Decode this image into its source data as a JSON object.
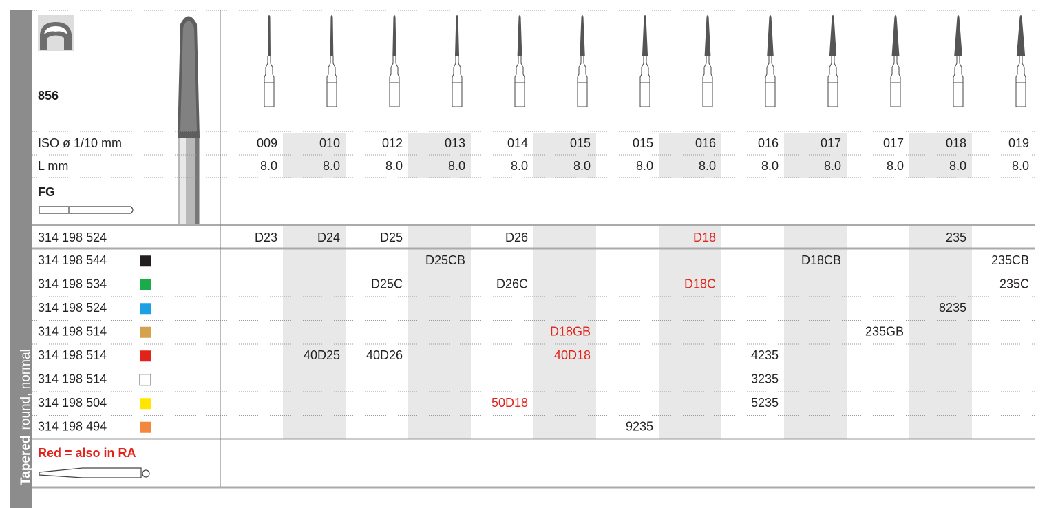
{
  "side_label": {
    "bold": "Tapered",
    "normal": "round, normal"
  },
  "model": "856",
  "iso_label": "ISO ø 1/10 mm",
  "iso": [
    "009",
    "010",
    "012",
    "013",
    "014",
    "015",
    "015",
    "016",
    "016",
    "017",
    "017",
    "018",
    "019"
  ],
  "length_label": "L mm",
  "length": [
    "8.0",
    "8.0",
    "8.0",
    "8.0",
    "8.0",
    "8.0",
    "8.0",
    "8.0",
    "8.0",
    "8.0",
    "8.0",
    "8.0",
    "8.0"
  ],
  "shank": "FG",
  "note": "Red = also in RA",
  "note_color": "#e2231a",
  "rows": [
    {
      "ref": "314 198 524",
      "swatch": null,
      "cells": [
        "D23",
        "D24",
        "D25",
        null,
        "D26",
        null,
        null,
        {
          "text": "D18",
          "color": "#e2231a"
        },
        null,
        null,
        null,
        "235",
        null
      ]
    },
    {
      "ref": "314 198 544",
      "swatch": "#231f20",
      "cells": [
        null,
        null,
        null,
        "D25CB",
        null,
        null,
        null,
        null,
        null,
        "D18CB",
        null,
        null,
        "235CB"
      ]
    },
    {
      "ref": "314 198 534",
      "swatch": "#1aab4b",
      "cells": [
        null,
        null,
        "D25C",
        null,
        "D26C",
        null,
        null,
        {
          "text": "D18C",
          "color": "#e2231a"
        },
        null,
        null,
        null,
        null,
        "235C"
      ]
    },
    {
      "ref": "314 198 524",
      "swatch": "#1ba1e2",
      "cells": [
        null,
        null,
        null,
        null,
        null,
        null,
        null,
        null,
        null,
        null,
        null,
        "8235",
        null
      ]
    },
    {
      "ref": "314 198 514",
      "swatch": "#d4a14e",
      "cells": [
        null,
        null,
        null,
        null,
        null,
        {
          "text": "D18GB",
          "color": "#e2231a"
        },
        null,
        null,
        null,
        null,
        "235GB",
        null,
        null
      ]
    },
    {
      "ref": "314 198 514",
      "swatch": "#e2231a",
      "cells": [
        null,
        "40D25",
        "40D26",
        null,
        null,
        {
          "text": "40D18",
          "color": "#e2231a"
        },
        null,
        null,
        "4235",
        null,
        null,
        null,
        null
      ]
    },
    {
      "ref": "314 198 514",
      "swatch": "#ffffff",
      "cells": [
        null,
        null,
        null,
        null,
        null,
        null,
        null,
        null,
        "3235",
        null,
        null,
        null,
        null
      ]
    },
    {
      "ref": "314 198 504",
      "swatch": "#ffe500",
      "cells": [
        null,
        null,
        null,
        null,
        {
          "text": "50D18",
          "color": "#e2231a"
        },
        null,
        null,
        null,
        "5235",
        null,
        null,
        null,
        null
      ]
    },
    {
      "ref": "314 198 494",
      "swatch": "#f4873f",
      "cells": [
        null,
        null,
        null,
        null,
        null,
        null,
        "9235",
        null,
        null,
        null,
        null,
        null,
        null
      ]
    }
  ]
}
